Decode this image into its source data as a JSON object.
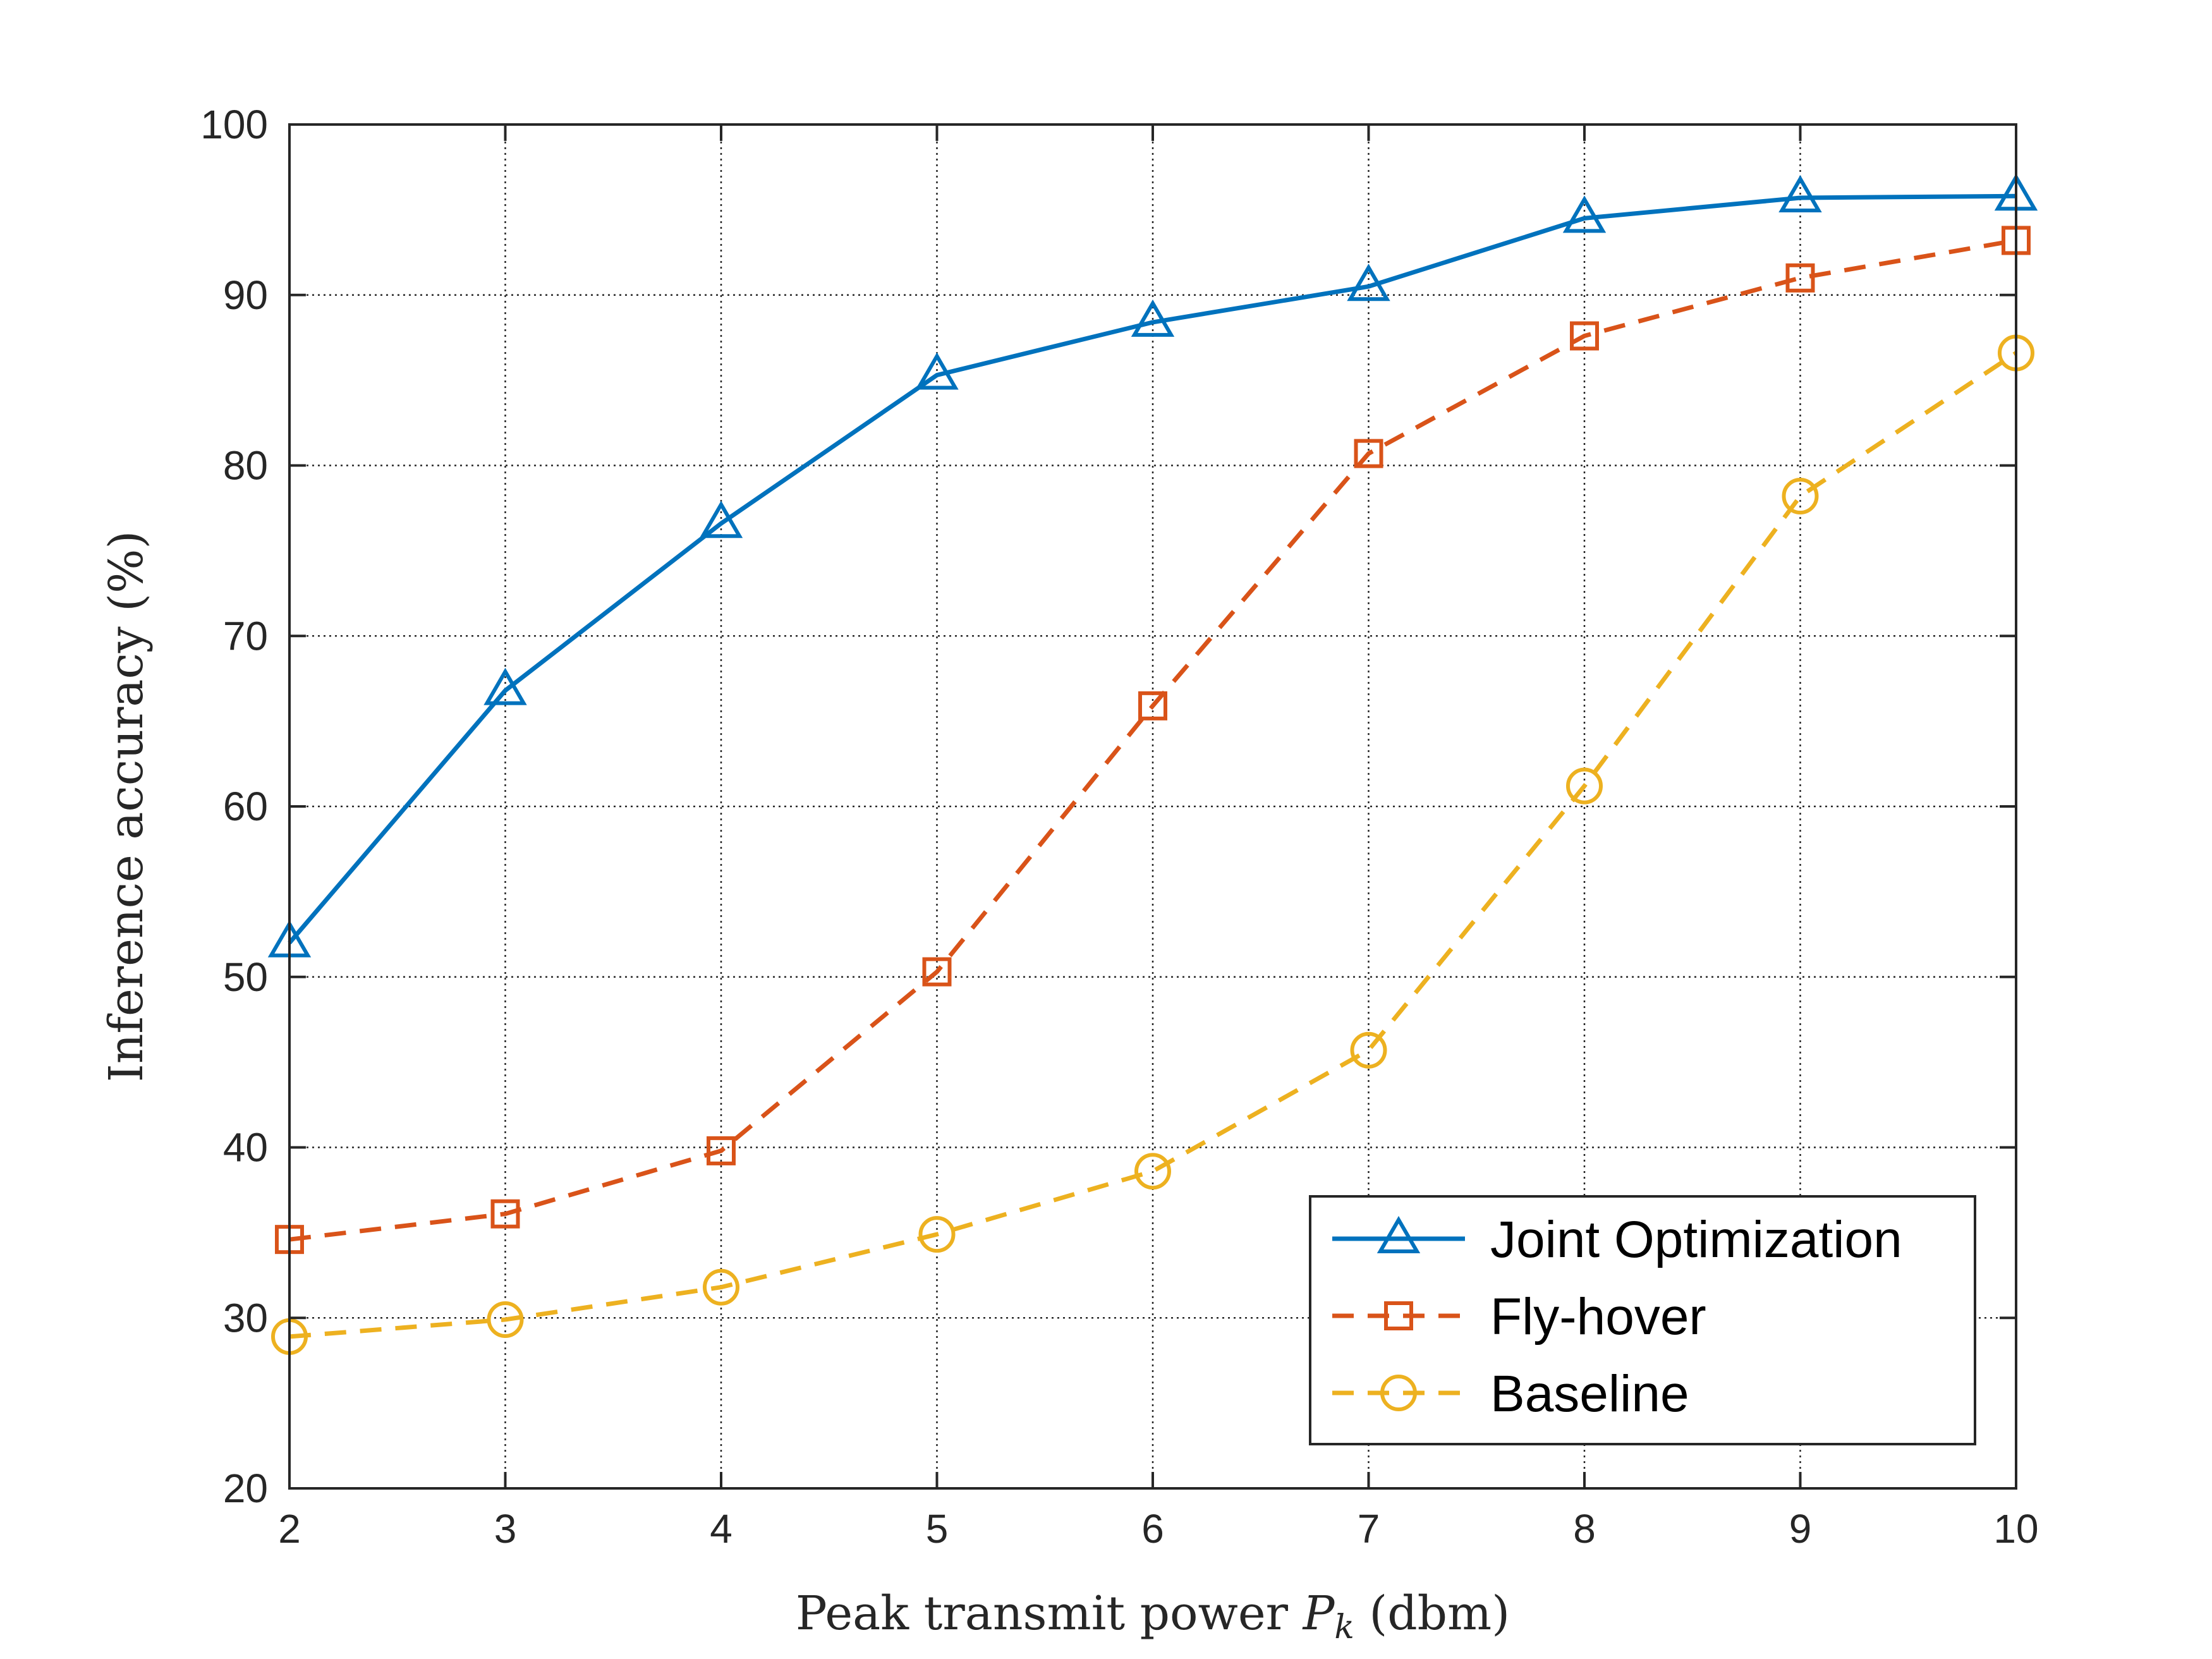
{
  "chart_data": {
    "type": "line",
    "x": [
      2,
      3,
      4,
      5,
      6,
      7,
      8,
      9,
      10
    ],
    "xlim": [
      2,
      10
    ],
    "ylim": [
      20,
      100
    ],
    "xticks": [
      "2",
      "3",
      "4",
      "5",
      "6",
      "7",
      "8",
      "9",
      "10"
    ],
    "yticks": [
      "20",
      "30",
      "40",
      "50",
      "60",
      "70",
      "80",
      "90",
      "100"
    ],
    "xlabel_main": "Peak transmit power ",
    "xlabel_sym": "P",
    "xlabel_sub": "k",
    "xlabel_unit": " (dbm)",
    "ylabel": "Inference accuracy (%)",
    "grid": true,
    "legend_position": "bottom-right",
    "series": [
      {
        "name": "Joint Optimization",
        "color": "#0072BD",
        "marker": "triangle",
        "dash": "solid",
        "values": [
          52.0,
          66.8,
          76.6,
          85.3,
          88.4,
          90.5,
          94.5,
          95.7,
          95.8
        ]
      },
      {
        "name": "Fly-hover",
        "color": "#D95319",
        "marker": "square",
        "dash": "dashed",
        "values": [
          34.6,
          36.1,
          39.8,
          50.3,
          65.9,
          80.7,
          87.6,
          91.0,
          93.2
        ]
      },
      {
        "name": "Baseline",
        "color": "#EDB120",
        "marker": "circle",
        "dash": "dashed",
        "values": [
          28.9,
          29.9,
          31.8,
          34.9,
          38.6,
          45.7,
          61.2,
          78.2,
          86.6
        ]
      }
    ]
  }
}
